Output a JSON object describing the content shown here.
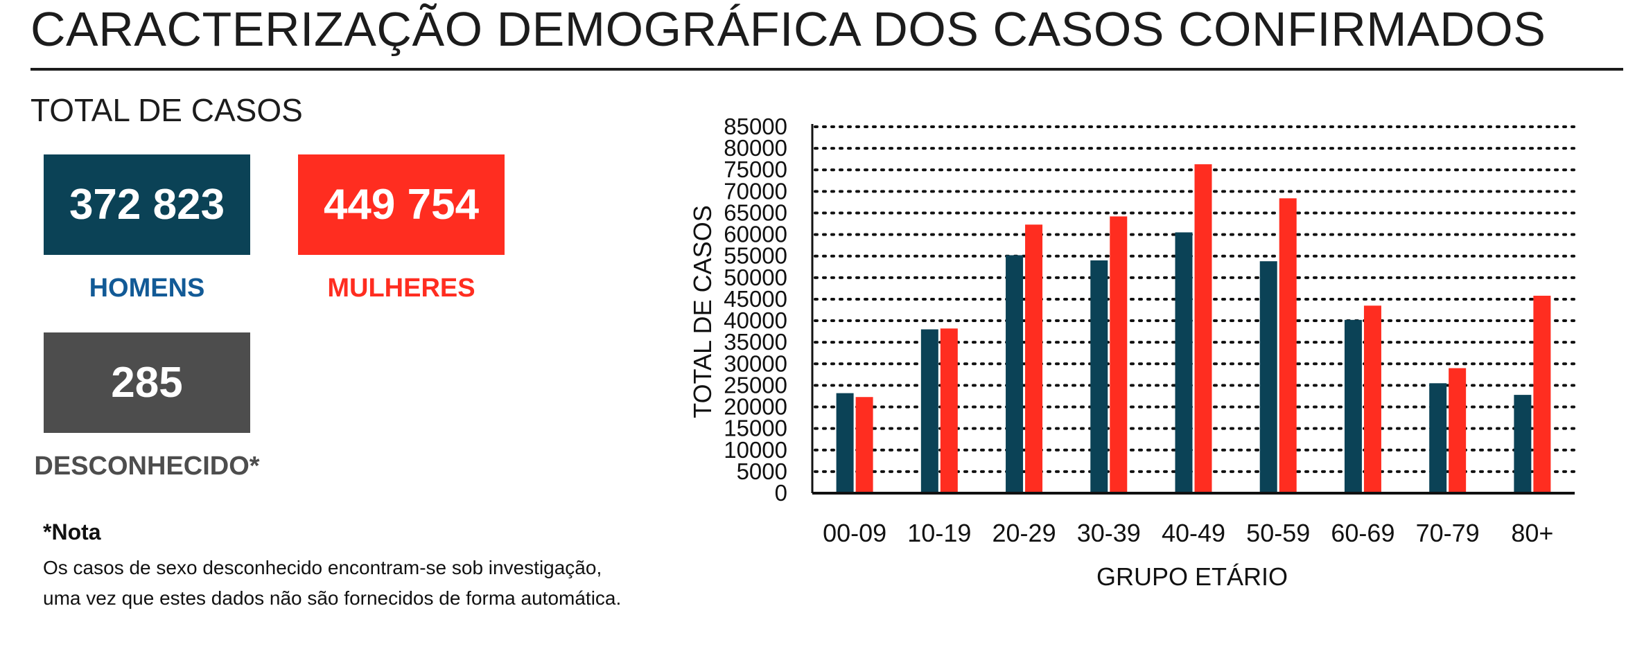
{
  "header": {
    "title": "CARACTERIZAÇÃO DEMOGRÁFICA DOS CASOS CONFIRMADOS"
  },
  "totals": {
    "label": "TOTAL DE CASOS",
    "men": {
      "value": "372 823",
      "label": "HOMENS"
    },
    "women": {
      "value": "449 754",
      "label": "MULHERES"
    },
    "unknown": {
      "value": "285",
      "label": "DESCONHECIDO*"
    }
  },
  "note": {
    "title": "*Nota",
    "line1": "Os casos de sexo desconhecido encontram-se sob investigação,",
    "line2": "uma vez que estes dados não são fornecidos de forma automática."
  },
  "colors": {
    "men": "#0b4256",
    "women": "#ff2d20",
    "unknown": "#4d4d4d",
    "men_label": "#125a96"
  },
  "chart_data": {
    "type": "bar",
    "title": "",
    "xlabel": "GRUPO ETÁRIO",
    "ylabel": "TOTAL DE CASOS",
    "ylim": [
      0,
      85000
    ],
    "yticks": [
      0,
      5000,
      10000,
      15000,
      20000,
      25000,
      30000,
      35000,
      40000,
      45000,
      50000,
      55000,
      60000,
      65000,
      70000,
      75000,
      80000,
      85000
    ],
    "grid": "dotted horizontal",
    "legend": "none",
    "categories": [
      "00-09",
      "10-19",
      "20-29",
      "30-39",
      "40-49",
      "50-59",
      "60-69",
      "70-79",
      "80+"
    ],
    "series": [
      {
        "values": [
          23200,
          38000,
          55200,
          54000,
          60500,
          53800,
          40200,
          25500,
          22800
        ],
        "color": "#0b4256"
      },
      {
        "values": [
          22300,
          38200,
          62300,
          64200,
          76300,
          68400,
          43500,
          29000,
          45800
        ],
        "color": "#ff2d20"
      }
    ]
  }
}
